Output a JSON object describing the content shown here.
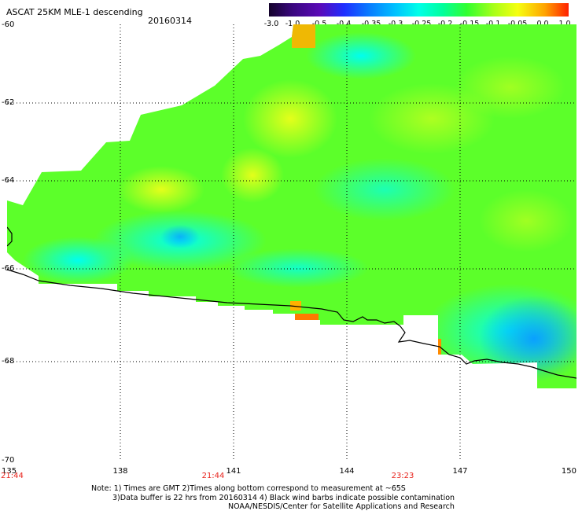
{
  "header": {
    "title": "ASCAT 25KM MLE-1 descending",
    "date": "20160314"
  },
  "colorbar": {
    "labels": [
      "-3.0",
      "-1.0",
      "-0.5",
      "-0.4",
      "-0.35",
      "-0.3",
      "-0.25",
      "-0.2",
      "-0.15",
      "-0.1",
      "-0.05",
      "0.0",
      "1.0"
    ],
    "colors": [
      "#1a0433",
      "#4a0aa0",
      "#1030ff",
      "#0a86ff",
      "#00c8ff",
      "#00ffe8",
      "#00ff9a",
      "#3cff2a",
      "#9aff1a",
      "#f0ff10",
      "#ffb400",
      "#ff5a00"
    ]
  },
  "map": {
    "lat_labels": [
      "-60",
      "-62",
      "-64",
      "-66",
      "-68",
      "-70"
    ],
    "lon_labels": [
      "135",
      "138",
      "141",
      "144",
      "147",
      "150"
    ],
    "time_labels": [
      "21:44",
      "21:44",
      "23:23"
    ]
  },
  "notes": {
    "line1": "Note: 1) Times are GMT 2)Times along bottom correspond to measurement at ~65S",
    "line2": "3)Data buffer is 22 hrs from 20160314 4) Black wind barbs indicate possible contamination",
    "line3": "NOAA/NESDIS/Center for Satellite Applications and Research"
  }
}
